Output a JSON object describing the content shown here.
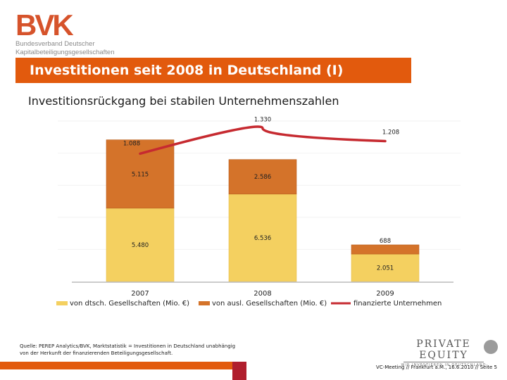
{
  "header": {
    "logo_mark": "BVK",
    "logo_line1": "Bundesverband Deutscher",
    "logo_line2": "Kapitalbeteiligungsgesellschaften",
    "title": "Investitionen seit 2008 in Deutschland (I)",
    "subtitle": "Investitionsrückgang bei stabilen Unternehmenszahlen"
  },
  "chart_data": {
    "type": "bar",
    "stacked": true,
    "categories": [
      "2007",
      "2008",
      "2009"
    ],
    "series": [
      {
        "name": "von dtsch. Gesellschaften (Mio. €)",
        "values": [
          5480,
          6536,
          2051
        ],
        "labels": [
          "5.480",
          "6.536",
          "2.051"
        ],
        "color": "#f4d060"
      },
      {
        "name": "von ausl. Gesellschaften (Mio. €)",
        "values": [
          5115,
          2586,
          688
        ],
        "labels": [
          "5.115",
          "2.586",
          "688"
        ],
        "color": "#d4732a"
      }
    ],
    "line_series": {
      "name": "finanzierte Unternehmen",
      "values": [
        1088,
        1330,
        1208
      ],
      "labels": [
        "1.088",
        "1.330",
        "1.208"
      ],
      "color": "#c62a30"
    },
    "bar_ylim": [
      0,
      12000
    ],
    "line_ylim": [
      0,
      1400
    ],
    "legend_position": "bottom",
    "grid": false
  },
  "footer": {
    "source": "Quelle: PEREP Analytics/BVK, Marktstatistik = Investitionen in Deutschland unabhängig von der Herkunft der finanzierenden Beteiligungsgesellschaft.",
    "pe_title": "PRIVATE EQUITY",
    "pe_sub": "WIR INVESTIEREN IN DEUTSCHLAND",
    "meta": "VC-Meeting // Frankfurt a.M., 16.6.2010 // Seite 5"
  }
}
